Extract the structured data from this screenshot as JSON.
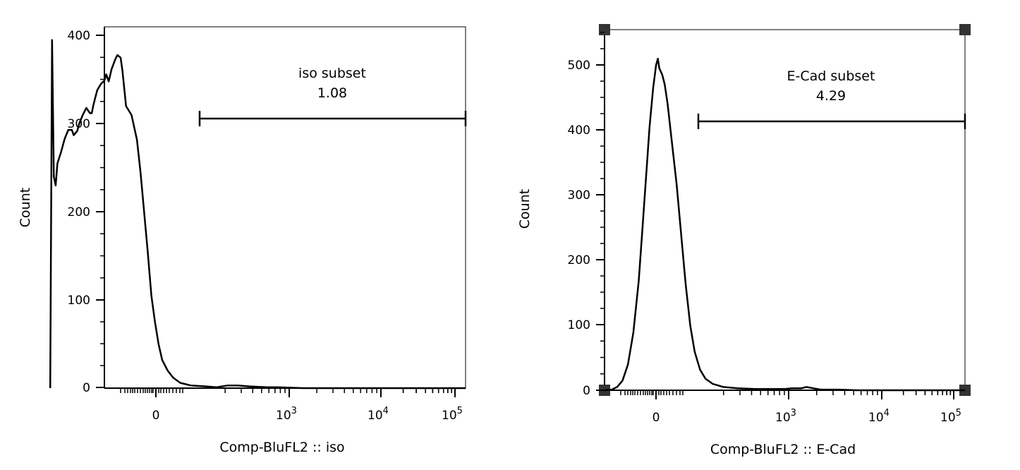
{
  "chart_data": [
    {
      "type": "histogram",
      "xlabel": "Comp-BluFL2 :: iso",
      "ylabel": "Count",
      "x_scale": "biexponential",
      "ylim": [
        0,
        410
      ],
      "y_ticks": [
        "0",
        "100",
        "200",
        "300",
        "400"
      ],
      "x_ticks": [
        {
          "base": "0",
          "exp": ""
        },
        {
          "base": "10",
          "exp": "3"
        },
        {
          "base": "10",
          "exp": "4"
        },
        {
          "base": "10",
          "exp": "5"
        }
      ],
      "gate": {
        "name": "iso subset",
        "value": "1.08"
      },
      "series_points": [
        [
          -0.15,
          0
        ],
        [
          -0.145,
          395
        ],
        [
          -0.14,
          240
        ],
        [
          -0.135,
          230
        ],
        [
          -0.13,
          255
        ],
        [
          -0.12,
          268
        ],
        [
          -0.11,
          283
        ],
        [
          -0.1,
          293
        ],
        [
          -0.09,
          293
        ],
        [
          -0.085,
          287
        ],
        [
          -0.075,
          292
        ],
        [
          -0.07,
          300
        ],
        [
          -0.06,
          310
        ],
        [
          -0.05,
          318
        ],
        [
          -0.04,
          312
        ],
        [
          -0.035,
          312
        ],
        [
          -0.03,
          322
        ],
        [
          -0.02,
          338
        ],
        [
          -0.01,
          345
        ],
        [
          0.0,
          349
        ],
        [
          0.005,
          356
        ],
        [
          0.012,
          348
        ],
        [
          0.02,
          362
        ],
        [
          0.03,
          373
        ],
        [
          0.036,
          378
        ],
        [
          0.045,
          375
        ],
        [
          0.05,
          360
        ],
        [
          0.06,
          320
        ],
        [
          0.075,
          310
        ],
        [
          0.09,
          282
        ],
        [
          0.1,
          245
        ],
        [
          0.11,
          200
        ],
        [
          0.12,
          155
        ],
        [
          0.13,
          105
        ],
        [
          0.14,
          75
        ],
        [
          0.15,
          50
        ],
        [
          0.16,
          32
        ],
        [
          0.175,
          20
        ],
        [
          0.19,
          12
        ],
        [
          0.21,
          6
        ],
        [
          0.24,
          3
        ],
        [
          0.28,
          2
        ],
        [
          0.31,
          1
        ],
        [
          0.34,
          3
        ],
        [
          0.37,
          3
        ],
        [
          0.4,
          2
        ],
        [
          0.45,
          1
        ],
        [
          0.48,
          1
        ],
        [
          0.55,
          0
        ],
        [
          0.7,
          0
        ],
        [
          0.85,
          0
        ],
        [
          1.0,
          0
        ]
      ]
    },
    {
      "type": "histogram",
      "xlabel": "Comp-BluFL2 :: E-Cad",
      "ylabel": "Count",
      "x_scale": "biexponential",
      "ylim": [
        0,
        560
      ],
      "y_ticks": [
        "0",
        "100",
        "200",
        "300",
        "400",
        "500"
      ],
      "x_ticks": [
        {
          "base": "0",
          "exp": ""
        },
        {
          "base": "10",
          "exp": "3"
        },
        {
          "base": "10",
          "exp": "4"
        },
        {
          "base": "10",
          "exp": "5"
        }
      ],
      "gate": {
        "name": "E-Cad subset",
        "value": "4.29"
      },
      "series_points": [
        [
          0.0,
          0
        ],
        [
          0.02,
          1
        ],
        [
          0.035,
          5
        ],
        [
          0.05,
          15
        ],
        [
          0.065,
          40
        ],
        [
          0.08,
          90
        ],
        [
          0.095,
          170
        ],
        [
          0.105,
          250
        ],
        [
          0.115,
          330
        ],
        [
          0.125,
          410
        ],
        [
          0.135,
          470
        ],
        [
          0.143,
          505
        ],
        [
          0.148,
          515
        ],
        [
          0.152,
          500
        ],
        [
          0.16,
          490
        ],
        [
          0.167,
          475
        ],
        [
          0.175,
          445
        ],
        [
          0.185,
          395
        ],
        [
          0.2,
          320
        ],
        [
          0.213,
          240
        ],
        [
          0.225,
          165
        ],
        [
          0.238,
          100
        ],
        [
          0.25,
          60
        ],
        [
          0.265,
          32
        ],
        [
          0.28,
          18
        ],
        [
          0.3,
          10
        ],
        [
          0.33,
          5
        ],
        [
          0.37,
          3
        ],
        [
          0.42,
          2
        ],
        [
          0.46,
          2
        ],
        [
          0.5,
          2
        ],
        [
          0.52,
          3
        ],
        [
          0.545,
          3
        ],
        [
          0.56,
          5
        ],
        [
          0.58,
          3
        ],
        [
          0.6,
          1
        ],
        [
          0.65,
          1
        ],
        [
          0.7,
          0
        ],
        [
          0.85,
          0
        ],
        [
          1.0,
          0
        ]
      ]
    }
  ]
}
